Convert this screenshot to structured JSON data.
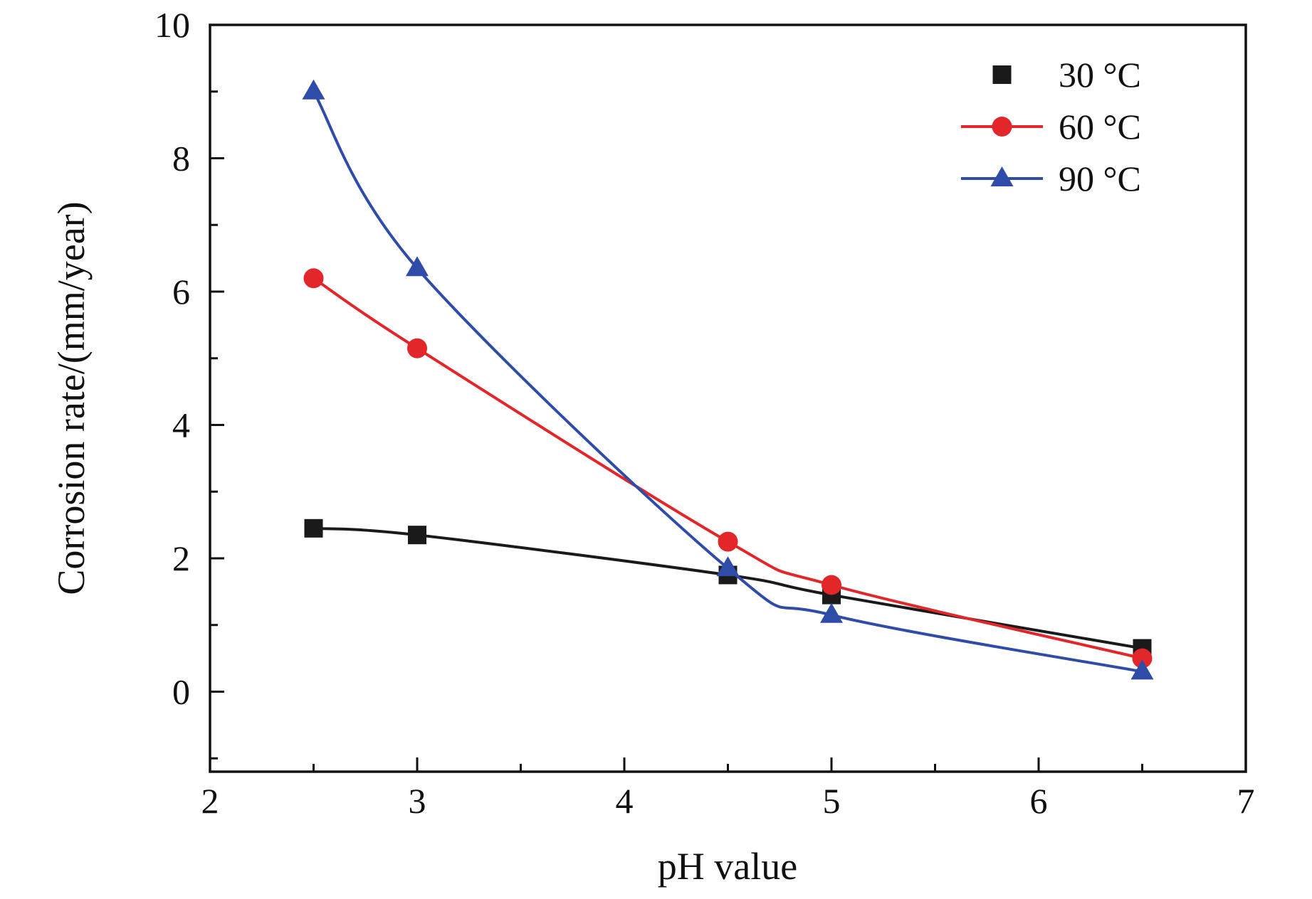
{
  "chart_data": {
    "type": "line",
    "title": "",
    "xlabel": "pH value",
    "ylabel": "Corrosion rate/(mm/year)",
    "xlim": [
      2,
      7
    ],
    "ylim": [
      -1.2,
      10
    ],
    "x_ticks": [
      2,
      3,
      4,
      5,
      6,
      7
    ],
    "x_minor_ticks": [
      2.5,
      3.5,
      4.5,
      5.5,
      6.5
    ],
    "y_ticks": [
      0,
      2,
      4,
      6,
      8,
      10
    ],
    "y_minor_ticks": [
      -1,
      1,
      3,
      5,
      7,
      9
    ],
    "grid": false,
    "legend_position": "top-right",
    "x": [
      2.5,
      3,
      4.5,
      5,
      6.5
    ],
    "series": [
      {
        "name": "30 °C",
        "color": "#1a1a1a",
        "marker": "square",
        "legend_line": false,
        "values": [
          2.45,
          2.35,
          1.75,
          1.45,
          0.65
        ]
      },
      {
        "name": "60 °C",
        "color": "#e22629",
        "marker": "circle",
        "legend_line": true,
        "values": [
          6.2,
          5.15,
          2.25,
          1.6,
          0.5
        ]
      },
      {
        "name": "90 °C",
        "color": "#2f4da8",
        "marker": "triangle",
        "legend_line": true,
        "values": [
          9.0,
          6.35,
          1.85,
          1.15,
          0.3
        ]
      }
    ]
  }
}
